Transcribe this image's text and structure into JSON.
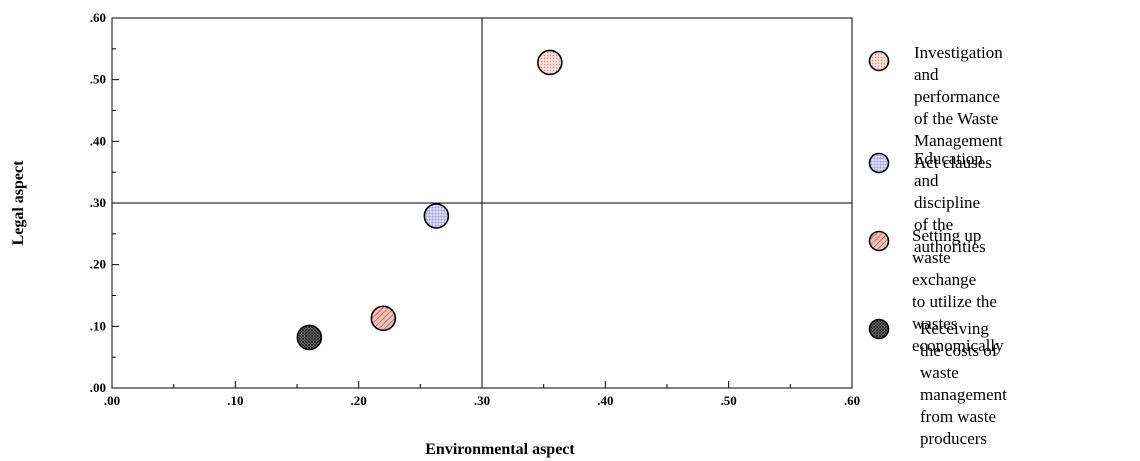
{
  "chart_data": {
    "type": "scatter",
    "xlabel": "Environmental aspect",
    "ylabel": "Legal aspect",
    "xlim": [
      0,
      0.6
    ],
    "ylim": [
      0,
      0.6
    ],
    "x_ticks": [
      ".00",
      ".10",
      ".20",
      ".30",
      ".40",
      ".50",
      ".60"
    ],
    "y_ticks": [
      ".00",
      ".10",
      ".20",
      ".30",
      ".40",
      ".50",
      ".60"
    ],
    "reference_lines": {
      "x": 0.3,
      "y": 0.3
    },
    "series": [
      {
        "name": "Investigation and performance of the Waste Management Act clauses",
        "x": 0.355,
        "y": 0.528,
        "color": "#f6c8c4",
        "pattern": "dots"
      },
      {
        "name": "Education and discipline of the authorities",
        "x": 0.263,
        "y": 0.279,
        "color": "#bcbcf0",
        "pattern": "grid"
      },
      {
        "name": "Setting up waste exchange to utilize the wastes economically",
        "x": 0.22,
        "y": 0.113,
        "color": "#e89a8e",
        "pattern": "hatch"
      },
      {
        "name": "Receiving the costs of waste management from waste producers",
        "x": 0.16,
        "y": 0.082,
        "color": "#555555",
        "pattern": "dense"
      }
    ],
    "legend_position": "right",
    "grid": false
  },
  "legend": {
    "items": [
      {
        "label": "Investigation and\nperformance of the Waste\nManagement Act clauses"
      },
      {
        "label": "Education and discipline\nof the authorities"
      },
      {
        "label": "Setting up waste exchange\nto utilize the wastes\neconomically"
      },
      {
        "label": "Receiving the costs of\nwaste management\nfrom waste producers"
      }
    ]
  }
}
